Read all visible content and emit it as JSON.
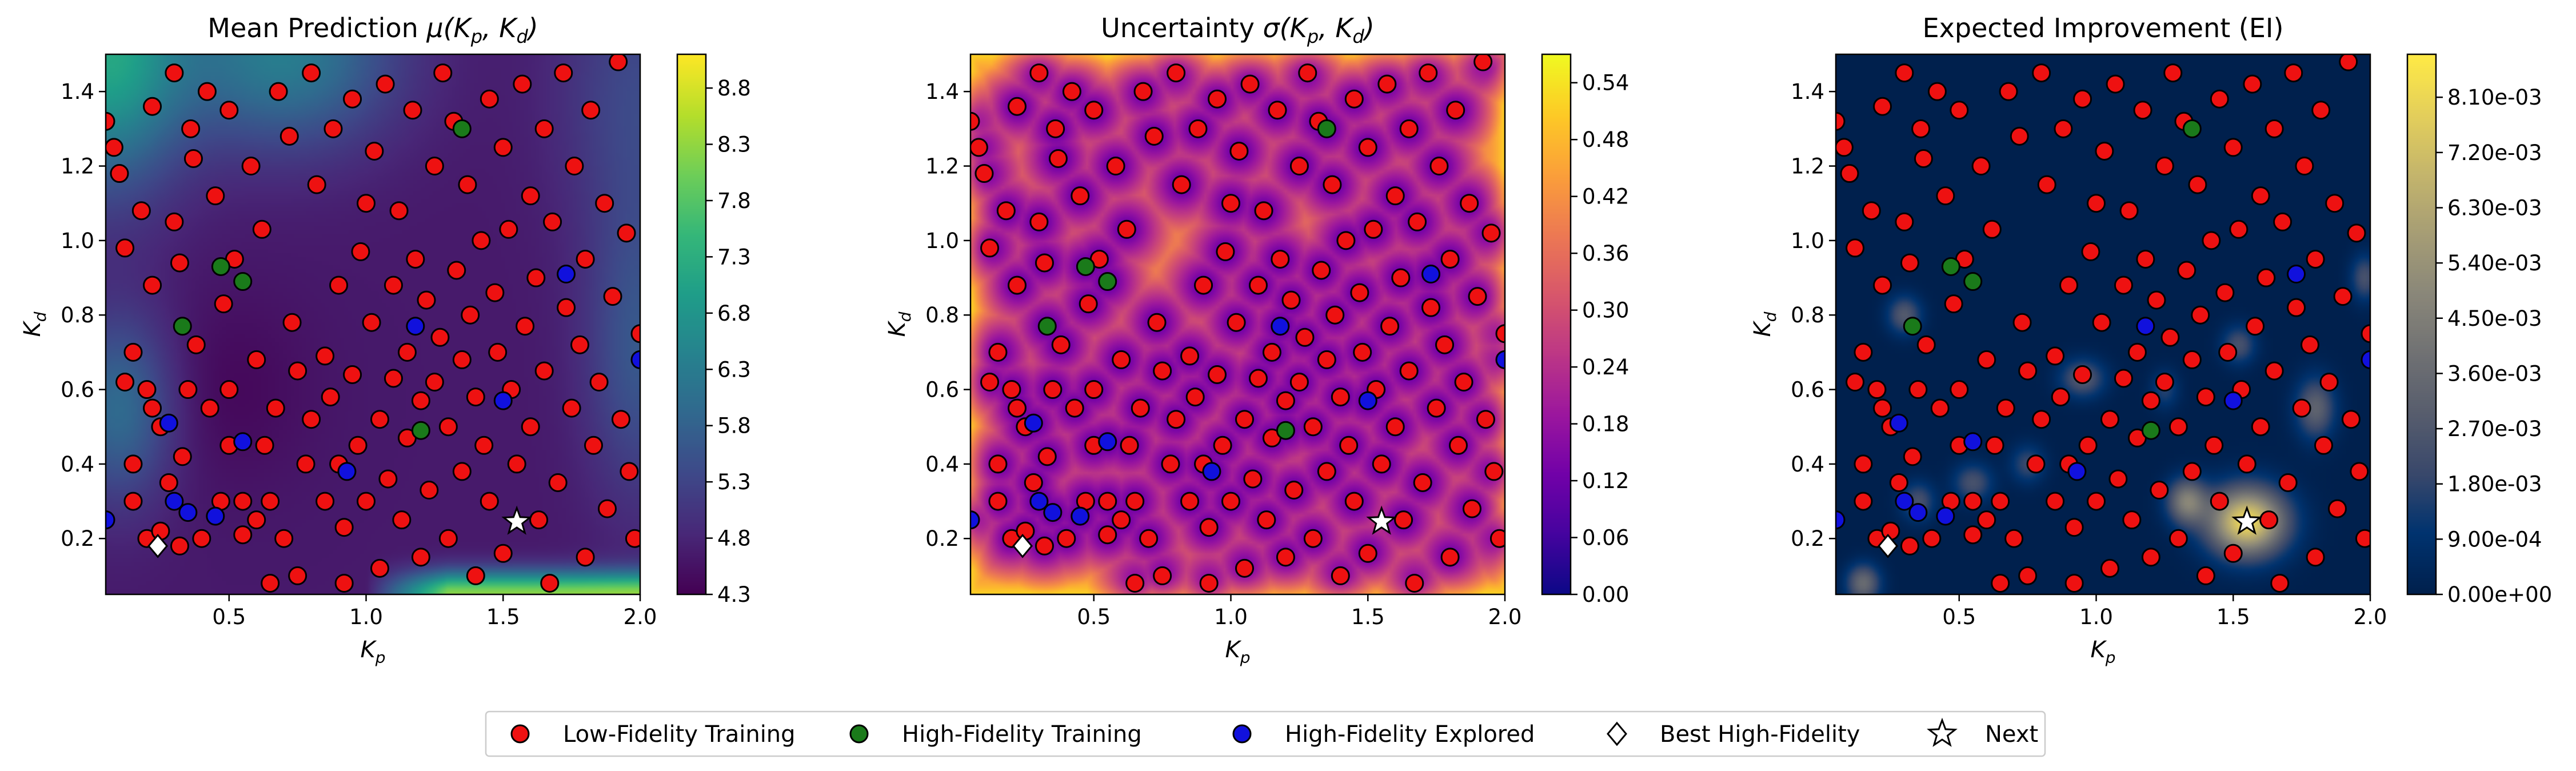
{
  "panels": [
    {
      "id": "mean",
      "title": "Mean Prediction μ(Kp, Kd)",
      "title_main": "Mean Prediction ",
      "title_math": "μ(K",
      "colormap": "viridis",
      "colorbar_ticks": [
        "4.3",
        "4.8",
        "5.3",
        "5.8",
        "6.3",
        "6.8",
        "7.3",
        "7.8",
        "8.3",
        "8.8"
      ],
      "colorbar_range": [
        4.3,
        9.1
      ]
    },
    {
      "id": "sigma",
      "title": "Uncertainty σ(Kp, Kd)",
      "title_main": "Uncertainty ",
      "title_math": "σ(K",
      "colormap": "plasma",
      "colorbar_ticks": [
        "0.00",
        "0.06",
        "0.12",
        "0.18",
        "0.24",
        "0.30",
        "0.36",
        "0.42",
        "0.48",
        "0.54"
      ],
      "colorbar_range": [
        0,
        0.57
      ]
    },
    {
      "id": "ei",
      "title": "Expected Improvement (EI)",
      "title_main": "Expected Improvement (EI)",
      "title_math": "",
      "colormap": "cividis",
      "colorbar_ticks": [
        "0.00e+00",
        "9.00e-04",
        "1.80e-03",
        "2.70e-03",
        "3.60e-03",
        "4.50e-03",
        "5.40e-03",
        "6.30e-03",
        "7.20e-03",
        "8.10e-03"
      ],
      "colorbar_range": [
        0,
        0.0088
      ]
    }
  ],
  "axes": {
    "xlabel": "K",
    "xlabel_sub": "p",
    "ylabel": "K",
    "ylabel_sub": "d",
    "xlim": [
      0.05,
      2.0
    ],
    "ylim": [
      0.05,
      1.5
    ],
    "xticks": [
      "0.5",
      "1.0",
      "1.5",
      "2.0"
    ],
    "yticks": [
      "0.2",
      "0.4",
      "0.6",
      "0.8",
      "1.0",
      "1.2",
      "1.4"
    ]
  },
  "legend": {
    "items": [
      {
        "label": "Low-Fidelity Training",
        "marker": "circle",
        "color": "#ee1111"
      },
      {
        "label": "High-Fidelity Training",
        "marker": "circle",
        "color": "#1a7a1a"
      },
      {
        "label": "High-Fidelity Explored",
        "marker": "circle",
        "color": "#1111dd"
      },
      {
        "label": "Best High-Fidelity",
        "marker": "diamond",
        "color": "#ffffff"
      },
      {
        "label": "Next",
        "marker": "star",
        "color": "#ffffff"
      }
    ]
  },
  "chart_data": {
    "type": "scatter",
    "xlabel": "Kp",
    "ylabel": "Kd",
    "xlim": [
      0.05,
      2.0
    ],
    "ylim": [
      0.05,
      1.5
    ],
    "series": [
      {
        "name": "Low-Fidelity Training",
        "points": [
          [
            0.05,
            1.32
          ],
          [
            0.08,
            1.25
          ],
          [
            0.1,
            1.18
          ],
          [
            0.12,
            0.98
          ],
          [
            0.12,
            0.62
          ],
          [
            0.15,
            0.7
          ],
          [
            0.15,
            0.4
          ],
          [
            0.15,
            0.3
          ],
          [
            0.18,
            1.08
          ],
          [
            0.2,
            0.6
          ],
          [
            0.2,
            0.2
          ],
          [
            0.22,
            0.88
          ],
          [
            0.22,
            0.55
          ],
          [
            0.22,
            1.36
          ],
          [
            0.25,
            0.5
          ],
          [
            0.25,
            0.22
          ],
          [
            0.28,
            0.35
          ],
          [
            0.3,
            1.45
          ],
          [
            0.3,
            1.05
          ],
          [
            0.32,
            0.94
          ],
          [
            0.32,
            0.18
          ],
          [
            0.33,
            0.42
          ],
          [
            0.35,
            0.6
          ],
          [
            0.36,
            1.3
          ],
          [
            0.37,
            1.22
          ],
          [
            0.38,
            0.72
          ],
          [
            0.4,
            0.2
          ],
          [
            0.42,
            1.4
          ],
          [
            0.43,
            0.55
          ],
          [
            0.45,
            1.12
          ],
          [
            0.47,
            0.3
          ],
          [
            0.48,
            0.83
          ],
          [
            0.5,
            1.35
          ],
          [
            0.5,
            0.6
          ],
          [
            0.5,
            0.45
          ],
          [
            0.52,
            0.95
          ],
          [
            0.55,
            0.3
          ],
          [
            0.55,
            0.21
          ],
          [
            0.58,
            1.2
          ],
          [
            0.6,
            0.68
          ],
          [
            0.6,
            0.25
          ],
          [
            0.62,
            1.03
          ],
          [
            0.63,
            0.45
          ],
          [
            0.65,
            0.3
          ],
          [
            0.65,
            0.08
          ],
          [
            0.67,
            0.55
          ],
          [
            0.68,
            1.4
          ],
          [
            0.7,
            0.2
          ],
          [
            0.72,
            1.28
          ],
          [
            0.73,
            0.78
          ],
          [
            0.75,
            0.65
          ],
          [
            0.75,
            0.1
          ],
          [
            0.78,
            0.4
          ],
          [
            0.8,
            1.45
          ],
          [
            0.8,
            0.52
          ],
          [
            0.82,
            1.15
          ],
          [
            0.85,
            0.69
          ],
          [
            0.85,
            0.3
          ],
          [
            0.87,
            0.58
          ],
          [
            0.88,
            1.3
          ],
          [
            0.9,
            0.88
          ],
          [
            0.9,
            0.4
          ],
          [
            0.92,
            0.23
          ],
          [
            0.92,
            0.08
          ],
          [
            0.95,
            1.38
          ],
          [
            0.95,
            0.64
          ],
          [
            0.97,
            0.45
          ],
          [
            0.98,
            0.97
          ],
          [
            1.0,
            1.1
          ],
          [
            1.0,
            0.3
          ],
          [
            1.02,
            0.78
          ],
          [
            1.03,
            1.24
          ],
          [
            1.05,
            0.52
          ],
          [
            1.05,
            0.12
          ],
          [
            1.07,
            1.42
          ],
          [
            1.08,
            0.36
          ],
          [
            1.1,
            0.88
          ],
          [
            1.1,
            0.63
          ],
          [
            1.12,
            1.08
          ],
          [
            1.13,
            0.25
          ],
          [
            1.15,
            0.7
          ],
          [
            1.15,
            0.47
          ],
          [
            1.17,
            1.35
          ],
          [
            1.18,
            0.95
          ],
          [
            1.2,
            0.57
          ],
          [
            1.2,
            0.15
          ],
          [
            1.22,
            0.84
          ],
          [
            1.23,
            0.33
          ],
          [
            1.25,
            1.2
          ],
          [
            1.25,
            0.62
          ],
          [
            1.27,
            0.74
          ],
          [
            1.28,
            1.45
          ],
          [
            1.3,
            0.5
          ],
          [
            1.3,
            0.2
          ],
          [
            1.32,
            1.32
          ],
          [
            1.33,
            0.92
          ],
          [
            1.35,
            0.68
          ],
          [
            1.35,
            0.38
          ],
          [
            1.37,
            1.15
          ],
          [
            1.38,
            0.8
          ],
          [
            1.4,
            0.58
          ],
          [
            1.4,
            0.1
          ],
          [
            1.42,
            1.0
          ],
          [
            1.43,
            0.45
          ],
          [
            1.45,
            1.38
          ],
          [
            1.45,
            0.3
          ],
          [
            1.47,
            0.86
          ],
          [
            1.48,
            0.7
          ],
          [
            1.5,
            1.25
          ],
          [
            1.5,
            0.16
          ],
          [
            1.52,
            1.03
          ],
          [
            1.53,
            0.6
          ],
          [
            1.55,
            0.4
          ],
          [
            1.57,
            1.42
          ],
          [
            1.58,
            0.77
          ],
          [
            1.6,
            1.12
          ],
          [
            1.6,
            0.5
          ],
          [
            1.62,
            0.9
          ],
          [
            1.63,
            0.25
          ],
          [
            1.65,
            1.3
          ],
          [
            1.65,
            0.65
          ],
          [
            1.67,
            0.08
          ],
          [
            1.68,
            1.05
          ],
          [
            1.7,
            0.35
          ],
          [
            1.72,
            1.45
          ],
          [
            1.73,
            0.82
          ],
          [
            1.75,
            0.55
          ],
          [
            1.76,
            1.2
          ],
          [
            1.78,
            0.72
          ],
          [
            1.8,
            0.15
          ],
          [
            1.8,
            0.95
          ],
          [
            1.82,
            1.35
          ],
          [
            1.83,
            0.45
          ],
          [
            1.85,
            0.62
          ],
          [
            1.87,
            1.1
          ],
          [
            1.88,
            0.28
          ],
          [
            1.9,
            0.85
          ],
          [
            1.92,
            1.48
          ],
          [
            1.93,
            0.52
          ],
          [
            1.95,
            1.02
          ],
          [
            1.96,
            0.38
          ],
          [
            1.98,
            0.2
          ],
          [
            2.0,
            0.75
          ]
        ]
      },
      {
        "name": "High-Fidelity Training",
        "points": [
          [
            0.33,
            0.77
          ],
          [
            0.47,
            0.93
          ],
          [
            0.55,
            0.89
          ],
          [
            1.2,
            0.49
          ],
          [
            1.35,
            1.3
          ]
        ]
      },
      {
        "name": "High-Fidelity Explored",
        "points": [
          [
            0.05,
            0.25
          ],
          [
            0.28,
            0.51
          ],
          [
            0.3,
            0.3
          ],
          [
            0.35,
            0.27
          ],
          [
            0.45,
            0.26
          ],
          [
            0.55,
            0.46
          ],
          [
            0.93,
            0.38
          ],
          [
            1.18,
            0.77
          ],
          [
            1.5,
            0.57
          ],
          [
            1.73,
            0.91
          ],
          [
            2.0,
            0.68
          ]
        ]
      },
      {
        "name": "Best High-Fidelity",
        "points": [
          [
            0.24,
            0.18
          ]
        ]
      },
      {
        "name": "Next",
        "points": [
          [
            1.55,
            0.245
          ]
        ]
      }
    ],
    "mean_field": {
      "base": 4.6,
      "range": [
        4.3,
        9.1
      ]
    },
    "sigma_field": {
      "range": [
        0,
        0.57
      ]
    },
    "ei_field": {
      "peak": 0.0085,
      "peak_at": [
        1.55,
        0.245
      ]
    }
  }
}
